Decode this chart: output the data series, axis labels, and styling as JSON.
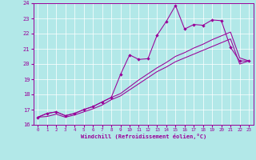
{
  "xlabel": "Windchill (Refroidissement éolien,°C)",
  "bg_color": "#b2e8e8",
  "line_color": "#990099",
  "grid_color": "#ffffff",
  "xlim": [
    -0.5,
    23.5
  ],
  "ylim": [
    16,
    24
  ],
  "xticks": [
    0,
    1,
    2,
    3,
    4,
    5,
    6,
    7,
    8,
    9,
    10,
    11,
    12,
    13,
    14,
    15,
    16,
    17,
    18,
    19,
    20,
    21,
    22,
    23
  ],
  "yticks": [
    16,
    17,
    18,
    19,
    20,
    21,
    22,
    23,
    24
  ],
  "x_data": [
    0,
    1,
    2,
    3,
    4,
    5,
    6,
    7,
    8,
    9,
    10,
    11,
    12,
    13,
    14,
    15,
    16,
    17,
    18,
    19,
    20,
    21,
    22,
    23
  ],
  "y_zigzag": [
    16.5,
    16.75,
    16.85,
    16.6,
    16.75,
    17.0,
    17.2,
    17.5,
    17.8,
    19.3,
    20.6,
    20.3,
    20.35,
    21.9,
    22.8,
    23.85,
    22.3,
    22.6,
    22.55,
    22.9,
    22.85,
    21.1,
    20.2,
    20.2
  ],
  "y_upper": [
    16.5,
    16.75,
    16.85,
    16.6,
    16.75,
    17.0,
    17.2,
    17.5,
    17.8,
    18.05,
    18.5,
    18.95,
    19.35,
    19.75,
    20.1,
    20.5,
    20.75,
    21.05,
    21.3,
    21.6,
    21.85,
    22.1,
    20.4,
    20.2
  ],
  "y_lower": [
    16.5,
    16.55,
    16.7,
    16.5,
    16.65,
    16.85,
    17.05,
    17.3,
    17.65,
    17.9,
    18.3,
    18.7,
    19.1,
    19.5,
    19.8,
    20.15,
    20.4,
    20.65,
    20.9,
    21.15,
    21.4,
    21.65,
    20.0,
    20.2
  ]
}
